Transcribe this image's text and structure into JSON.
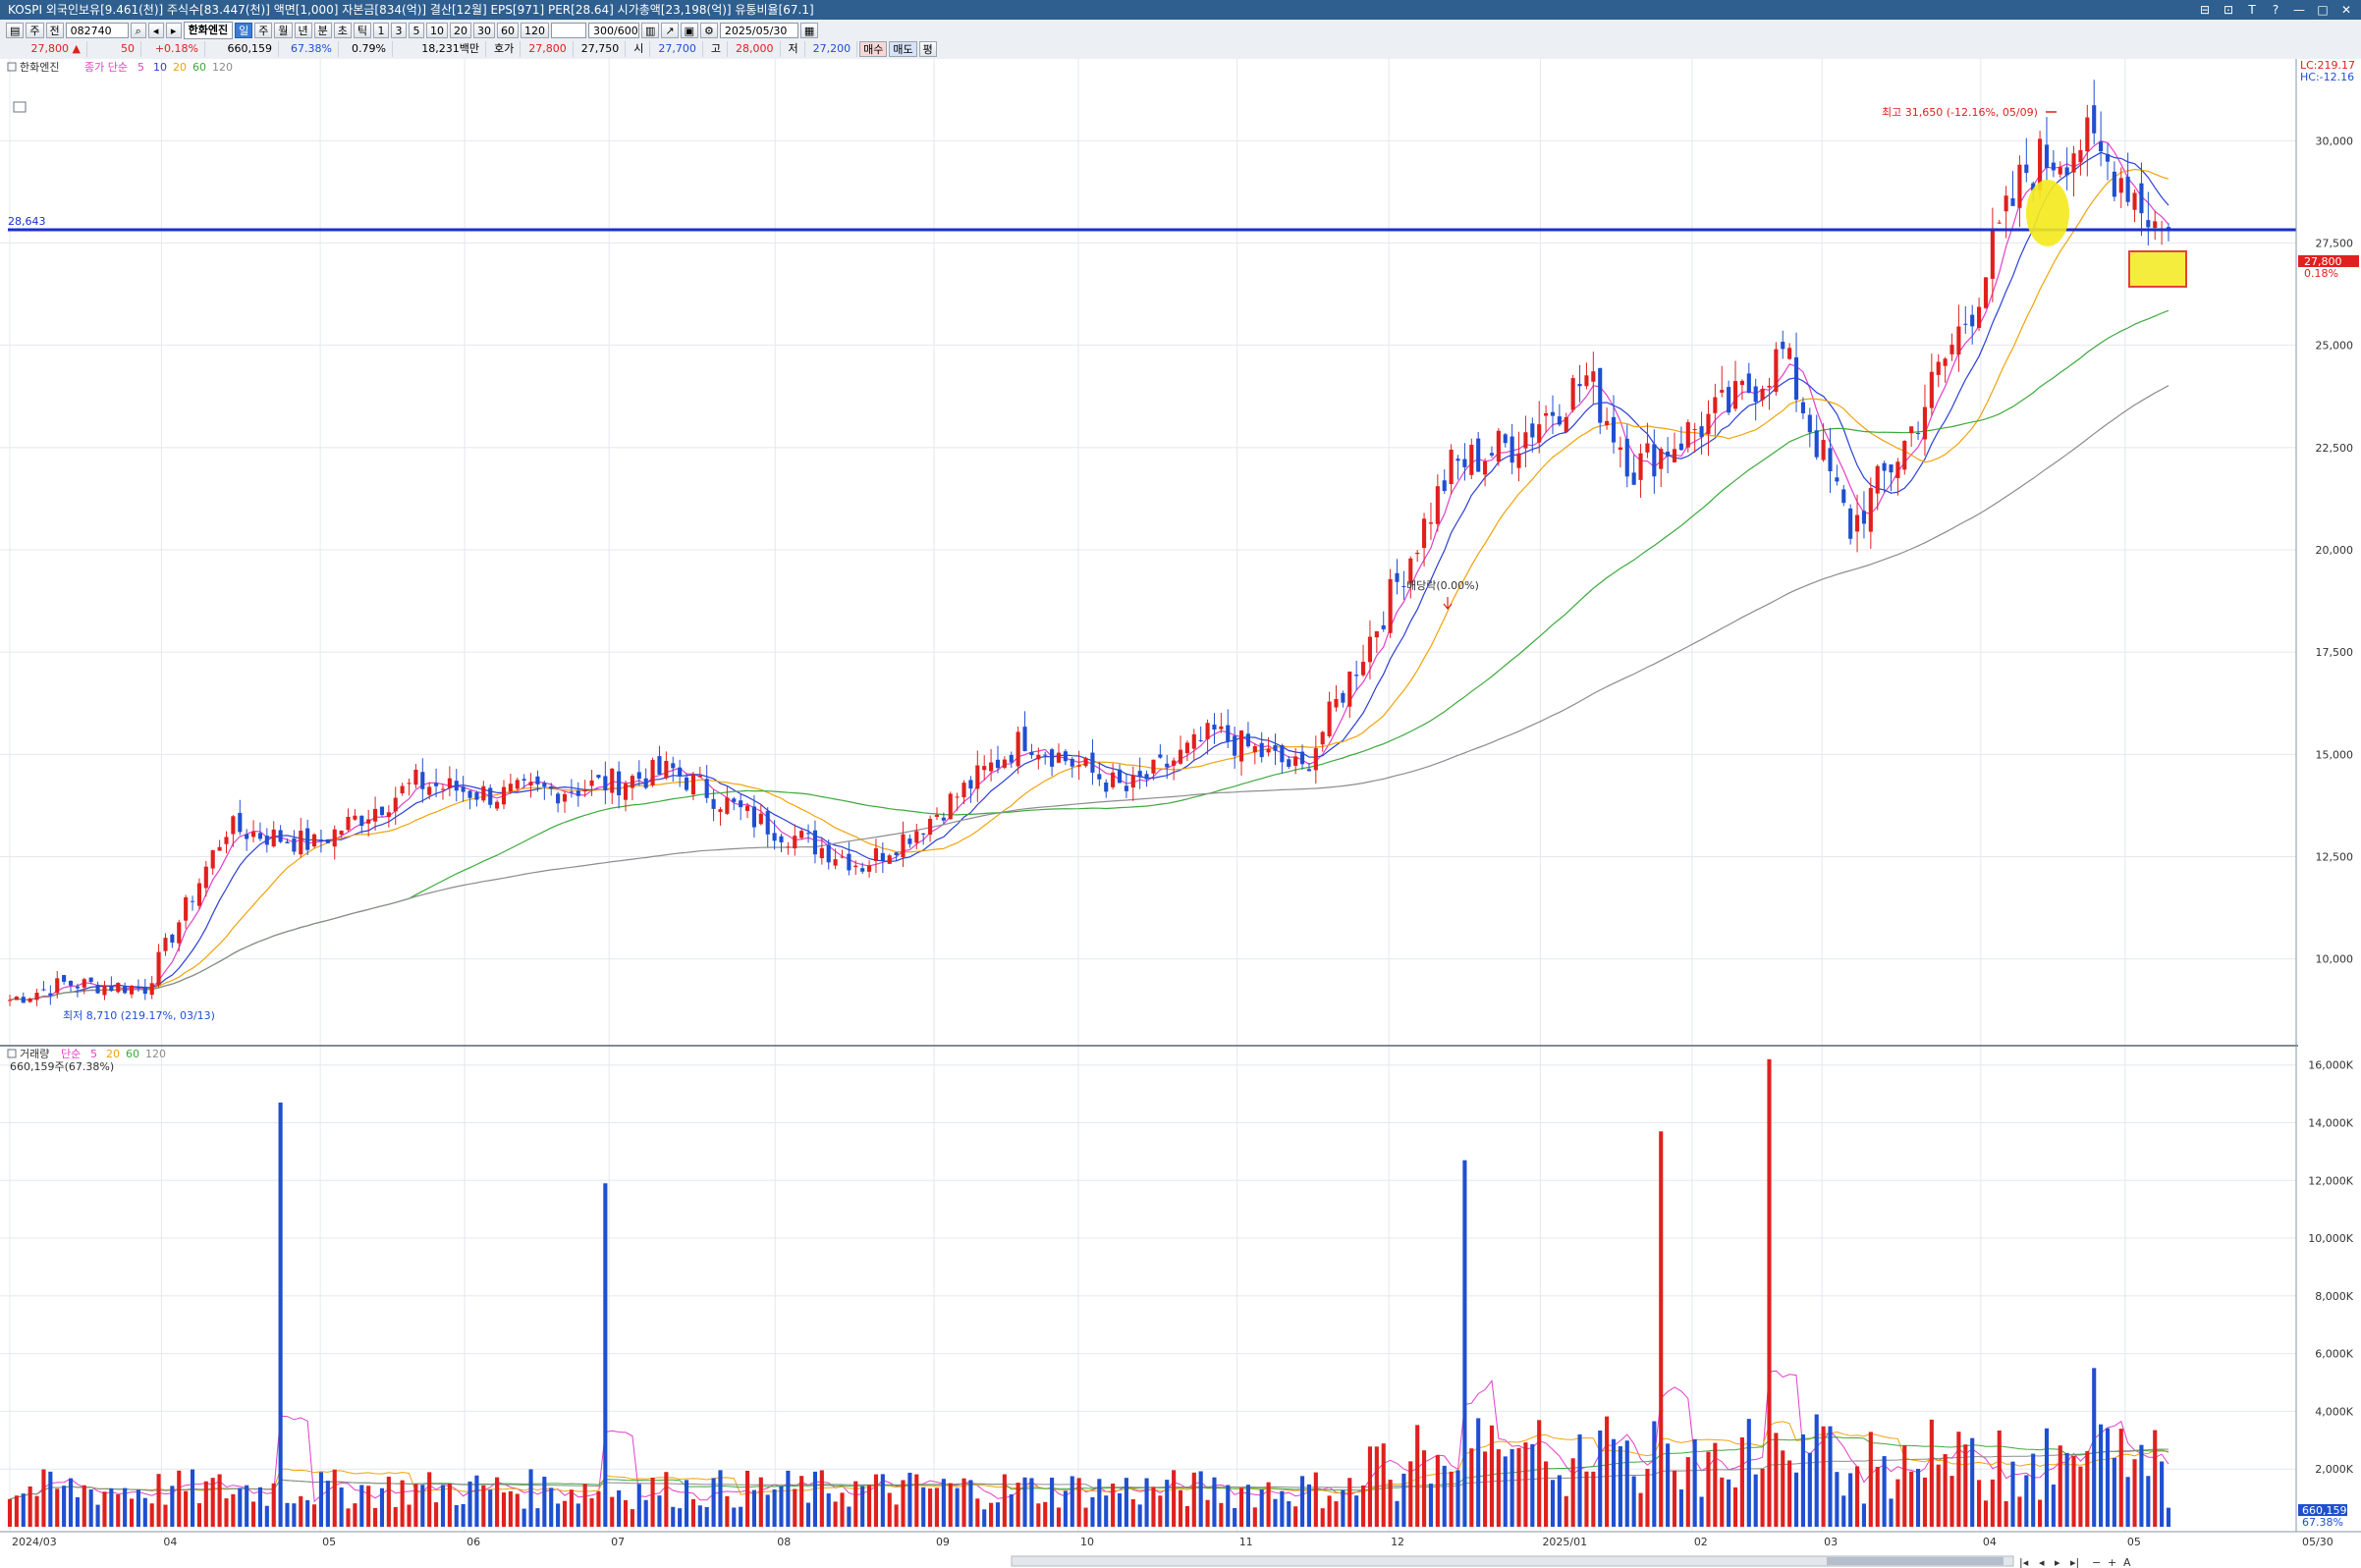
{
  "title_bar": {
    "info": "KOSPI 외국인보유[9.461(천)] 주식수[83.447(천)] 액면[1,000] 자본금[834(억)] 결산[12월] EPS[971] PER[28.64] 시가총액[23,198(억)] 유통비율[67.1]",
    "buttons": [
      "⊟",
      "⊡",
      "T",
      "?",
      "—",
      "□",
      "✕"
    ]
  },
  "toolbar": {
    "market_label": "주",
    "market_sel": "전",
    "code": "082740",
    "stock_name": "한화엔진",
    "periods": [
      "일",
      "주",
      "월",
      "년",
      "분",
      "초",
      "틱"
    ],
    "active_period": "일",
    "intervals": [
      "1",
      "3",
      "5",
      "10",
      "20",
      "30",
      "60",
      "120"
    ],
    "count": "300/600",
    "date": "2025/05/30"
  },
  "quote": {
    "price": "27,800 ▲",
    "change": "50",
    "change_pct": "+0.18%",
    "volume": "660,159",
    "vol_ratio": "67.38%",
    "turnover": "0.79%",
    "amount": "18,231백만",
    "hoga_label": "호가",
    "hoga": "27,800",
    "hoga2": "27,750",
    "open_label": "시",
    "open": "27,700",
    "high_label": "고",
    "high": "28,000",
    "low_label": "저",
    "low": "27,200",
    "buy_btn": "매수",
    "sell_btn": "매도",
    "eval_btn": "평"
  },
  "price_panel": {
    "legend_name": "한화엔진",
    "legend_ma_label": "종가 단순",
    "ma_periods": [
      "5",
      "10",
      "20",
      "60",
      "120"
    ],
    "ma_colors": [
      "#e23fc9",
      "#2a3fd6",
      "#f0a30a",
      "#3caa3c",
      "#8c8c8c"
    ],
    "hline_value": "28,643",
    "high_annot": "최고 31,650 (-12.16%, 05/09)",
    "low_annot": "최저 8,710 (219.17%, 03/13)",
    "dividend_annot": "배당락(0.00%)",
    "lc": "LC:219.17",
    "hc": "HC:-12.16",
    "last_price": "27,800",
    "last_pct": "0.18%",
    "y_ticks": [
      "30,000",
      "27,500",
      "25,000",
      "22,500",
      "20,000",
      "17,500",
      "15,000",
      "12,500",
      "10,000"
    ]
  },
  "volume_panel": {
    "legend_name": "거래량",
    "legend_ma_label": "단순",
    "ma_periods": [
      "5",
      "20",
      "60",
      "120"
    ],
    "sub_label": "660,159주(67.38%)",
    "last_volume": "660,159",
    "last_pct": "67.38%",
    "y_ticks": [
      "16,000K",
      "14,000K",
      "12,000K",
      "10,000K",
      "8,000K",
      "6,000K",
      "4,000K",
      "2,000K"
    ]
  },
  "x_axis": {
    "labels": [
      "2024/03",
      "04",
      "05",
      "06",
      "07",
      "08",
      "09",
      "10",
      "11",
      "12",
      "2025/01",
      "02",
      "03",
      "04",
      "05"
    ],
    "right_label": "05/30"
  },
  "colors": {
    "up": "#e0201e",
    "down": "#1f4fd1",
    "hline": "#1a2fd0",
    "title_bg": "#2e5f8f"
  },
  "chart_data": [
    {
      "type": "candlestick",
      "title": "한화엔진",
      "ylim": [
        8000,
        32000
      ],
      "grid": true,
      "key_points": [
        {
          "date": "2024/03/13",
          "low": 8710
        },
        {
          "date": "2024/05",
          "close": 13200
        },
        {
          "date": "2024/07",
          "close": 14000
        },
        {
          "date": "2024/09",
          "close": 12300
        },
        {
          "date": "2024/11",
          "close": 15400
        },
        {
          "date": "2025/01",
          "close": 22000
        },
        {
          "date": "2025/02",
          "close": 26000
        },
        {
          "date": "2025/04",
          "close": 20500
        },
        {
          "date": "2025/05/09",
          "high": 31650
        },
        {
          "date": "2025/05/30",
          "open": 27700,
          "high": 28000,
          "low": 27200,
          "close": 27800
        }
      ],
      "moving_averages": [
        "MA5",
        "MA10",
        "MA20",
        "MA60",
        "MA120"
      ],
      "reference_line": 28643
    },
    {
      "type": "bar",
      "title": "거래량",
      "ylim": [
        0,
        16500
      ],
      "unit": "K",
      "peaks": [
        {
          "date": "2024/05",
          "value": 14700
        },
        {
          "date": "2024/06",
          "value": 11900
        },
        {
          "date": "2025/01",
          "value": 12700
        },
        {
          "date": "2025/02",
          "value": 13700
        },
        {
          "date": "2025/03",
          "value": 16200
        },
        {
          "date": "2025/05",
          "value": 5500
        }
      ],
      "last": 660
    }
  ]
}
